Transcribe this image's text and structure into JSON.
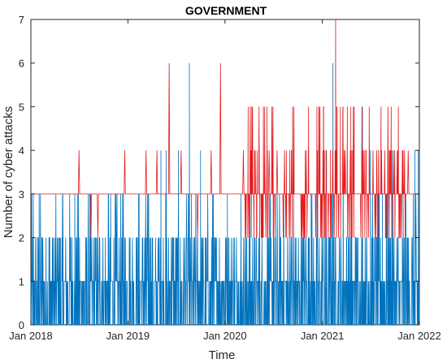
{
  "chart_data": {
    "type": "line",
    "title": "GOVERNMENT",
    "xlabel": "Time",
    "ylabel": "Number of cyber attacks",
    "xlim": [
      "2018-01-01",
      "2022-01-01"
    ],
    "ylim": [
      0,
      7
    ],
    "x_tick_labels": [
      "Jan 2018",
      "Jan 2019",
      "Jan 2020",
      "Jan 2021",
      "Jan 2022"
    ],
    "y_tick_labels": [
      "0",
      "1",
      "2",
      "3",
      "4",
      "5",
      "6",
      "7"
    ],
    "grid": false,
    "legend": "none",
    "series_colors": [
      "#0072BD",
      "#E41A1C"
    ],
    "notes": "Daily counts; blue series (lower) spikes frequently between 0 and 3, red series baseline 3 with spikes above.",
    "series": [
      {
        "values_by_date": {
          "blue_spikes": [
            [
              "2018-01-10",
              3
            ],
            [
              "2018-02-01",
              3
            ],
            [
              "2018-03-12",
              2
            ],
            [
              "2018-05-01",
              3
            ],
            [
              "2018-06-15",
              3
            ],
            [
              "2018-08-10",
              3
            ],
            [
              "2018-10-20",
              3
            ],
            [
              "2018-12-15",
              3
            ],
            [
              "2019-02-10",
              3
            ],
            [
              "2019-03-20",
              3
            ],
            [
              "2019-05-05",
              4
            ],
            [
              "2019-05-25",
              4
            ],
            [
              "2019-07-10",
              4
            ],
            [
              "2019-08-20",
              6
            ],
            [
              "2019-10-01",
              4
            ],
            [
              "2019-11-15",
              3
            ],
            [
              "2020-01-10",
              3
            ],
            [
              "2020-03-01",
              3
            ],
            [
              "2020-05-10",
              3
            ],
            [
              "2020-07-01",
              3
            ],
            [
              "2020-09-15",
              3
            ],
            [
              "2020-11-20",
              3
            ],
            [
              "2021-01-15",
              4
            ],
            [
              "2021-02-10",
              6
            ],
            [
              "2021-03-20",
              5
            ],
            [
              "2021-04-20",
              4
            ],
            [
              "2021-06-01",
              5
            ],
            [
              "2021-07-01",
              4
            ],
            [
              "2021-08-15",
              3
            ],
            [
              "2021-09-20",
              4
            ],
            [
              "2021-11-01",
              3
            ],
            [
              "2021-12-15",
              4
            ],
            [
              "2021-12-28",
              4
            ]
          ]
        }
      },
      {
        "baseline": 3,
        "values_by_date": {
          "red_spikes": [
            [
              "2018-07-01",
              4
            ],
            [
              "2018-08-15",
              2
            ],
            [
              "2018-09-10",
              2
            ],
            [
              "2018-12-20",
              4
            ],
            [
              "2019-03-10",
              4
            ],
            [
              "2019-04-20",
              4
            ],
            [
              "2019-06-05",
              6
            ],
            [
              "2019-07-20",
              4
            ],
            [
              "2019-09-20",
              2
            ],
            [
              "2019-11-10",
              4
            ],
            [
              "2019-12-15",
              6
            ],
            [
              "2020-03-10",
              4
            ],
            [
              "2020-05-01",
              4
            ],
            [
              "2020-06-15",
              4
            ],
            [
              "2020-07-15",
              4
            ],
            [
              "2020-09-01",
              4
            ],
            [
              "2020-11-10",
              4
            ],
            [
              "2020-12-20",
              5
            ],
            [
              "2021-01-05",
              5
            ],
            [
              "2021-02-20",
              7
            ],
            [
              "2021-03-10",
              5
            ],
            [
              "2021-04-05",
              5
            ],
            [
              "2021-05-01",
              5
            ],
            [
              "2021-06-15",
              4
            ],
            [
              "2021-08-01",
              4
            ],
            [
              "2021-09-10",
              4
            ],
            [
              "2021-10-10",
              4
            ],
            [
              "2021-11-20",
              4
            ]
          ]
        }
      }
    ]
  }
}
